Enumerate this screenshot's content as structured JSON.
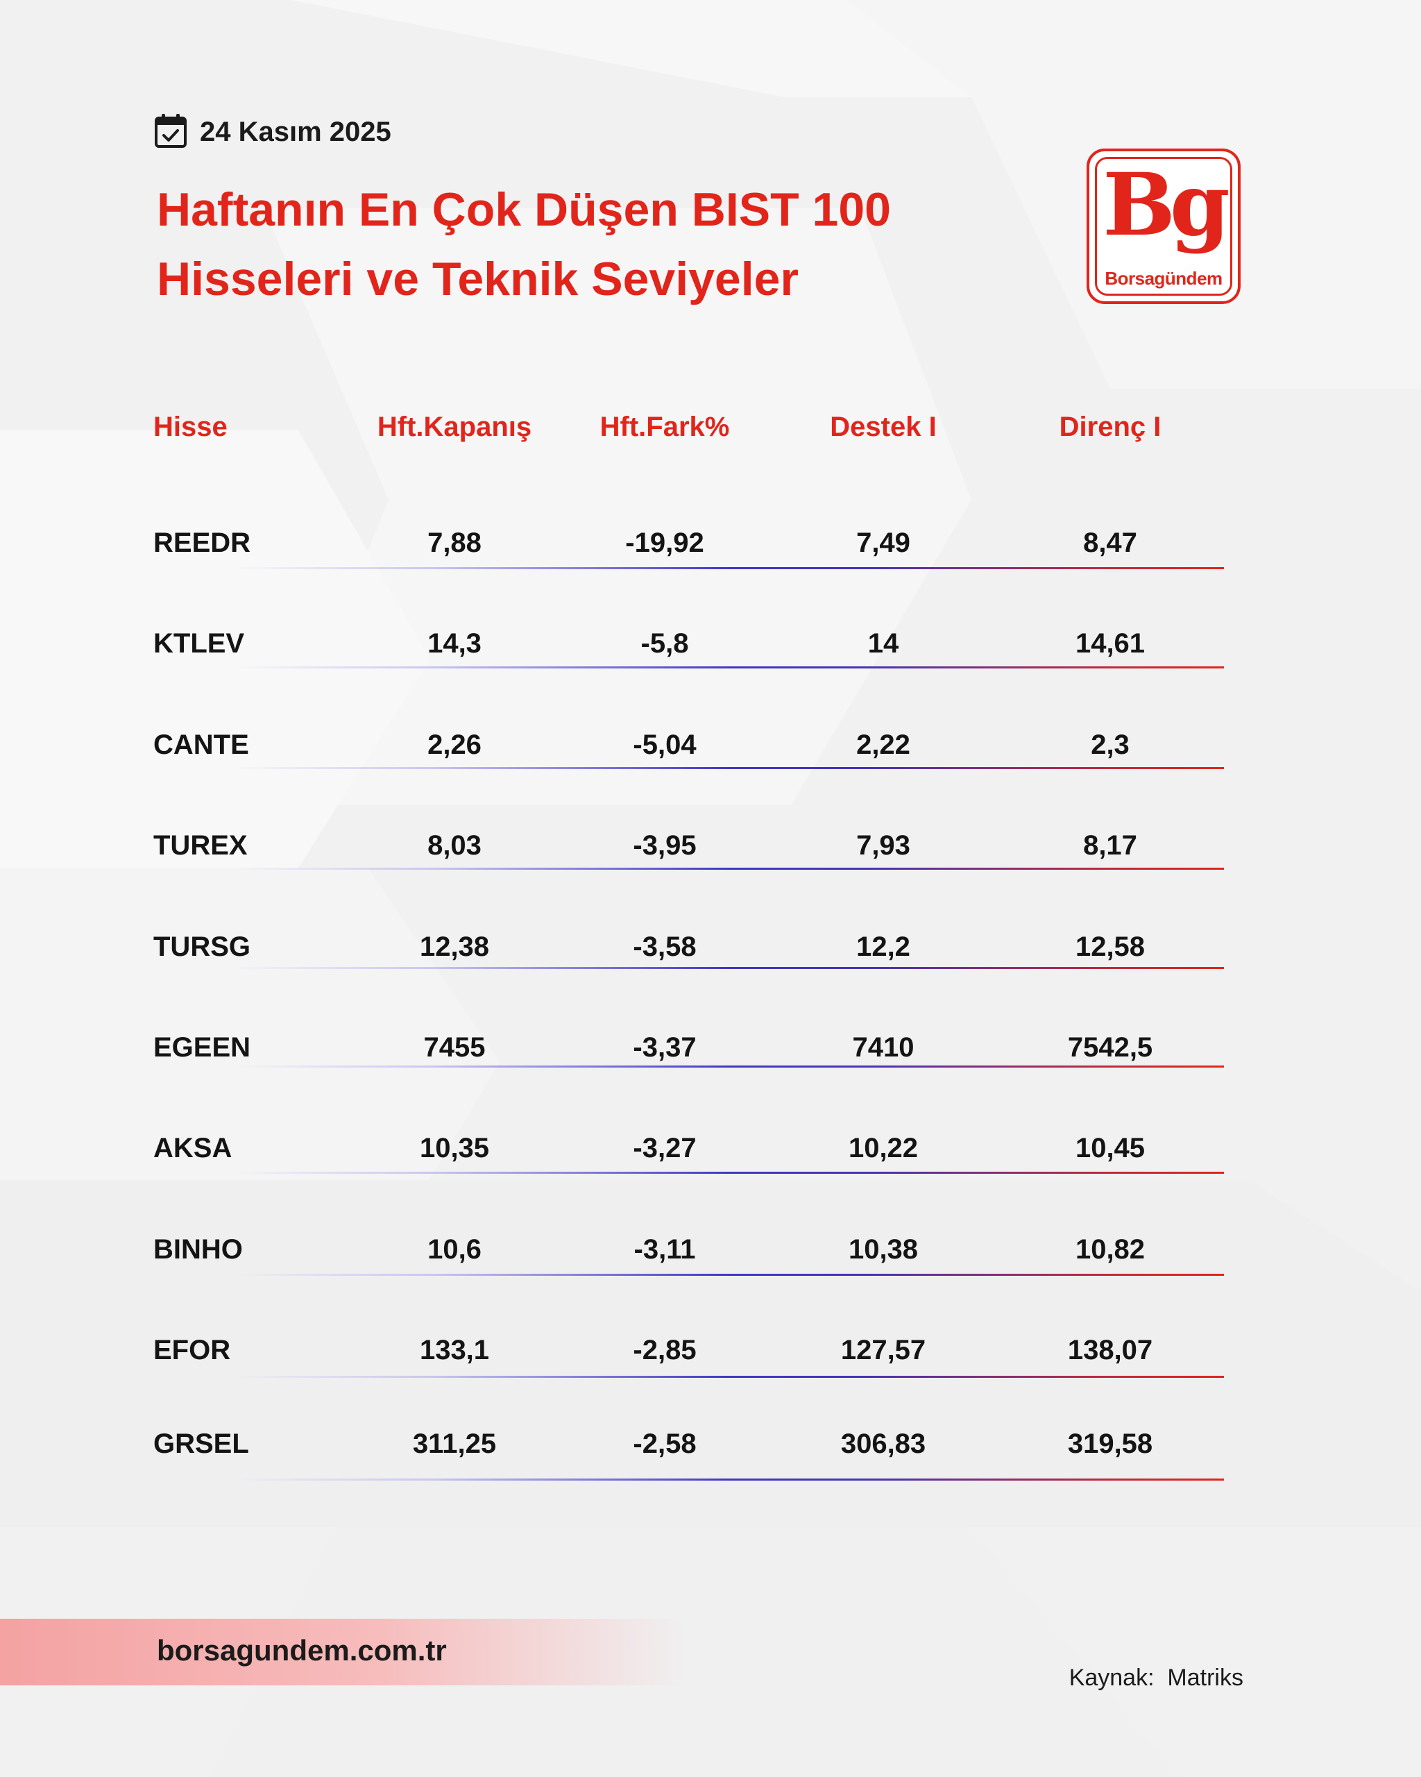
{
  "header": {
    "date": "24 Kasım 2025",
    "title_line1": "Haftanın En Çok Düşen BIST 100",
    "title_line2": "Hisseleri ve Teknik Seviyeler",
    "calendar_icon": "calendar-check-icon"
  },
  "logo": {
    "mark": "Bg",
    "name": "Borsagündem"
  },
  "table": {
    "columns": [
      "Hisse",
      "Hft.Kapanış",
      "Hft.Fark%",
      "Destek I",
      "Direnç I"
    ],
    "rows": [
      [
        "REEDR",
        "7,88",
        "-19,92",
        "7,49",
        "8,47"
      ],
      [
        "KTLEV",
        "14,3",
        "-5,8",
        "14",
        "14,61"
      ],
      [
        "CANTE",
        "2,26",
        "-5,04",
        "2,22",
        "2,3"
      ],
      [
        "TUREX",
        "8,03",
        "-3,95",
        "7,93",
        "8,17"
      ],
      [
        "TURSG",
        "12,38",
        "-3,58",
        "12,2",
        "12,58"
      ],
      [
        "EGEEN",
        "7455",
        "-3,37",
        "7410",
        "7542,5"
      ],
      [
        "AKSA",
        "10,35",
        "-3,27",
        "10,22",
        "10,45"
      ],
      [
        "BINHO",
        "10,6",
        "-3,11",
        "10,38",
        "10,82"
      ],
      [
        "EFOR",
        "133,1",
        "-2,85",
        "127,57",
        "138,07"
      ],
      [
        "GRSEL",
        "311,25",
        "-2,58",
        "306,83",
        "319,58"
      ]
    ]
  },
  "footer": {
    "url": "borsagundem.com.tr",
    "source": "Kaynak:  Matriks"
  },
  "colors": {
    "accent": "#e1251b",
    "text": "#141414",
    "background": "#f1f1f2"
  }
}
